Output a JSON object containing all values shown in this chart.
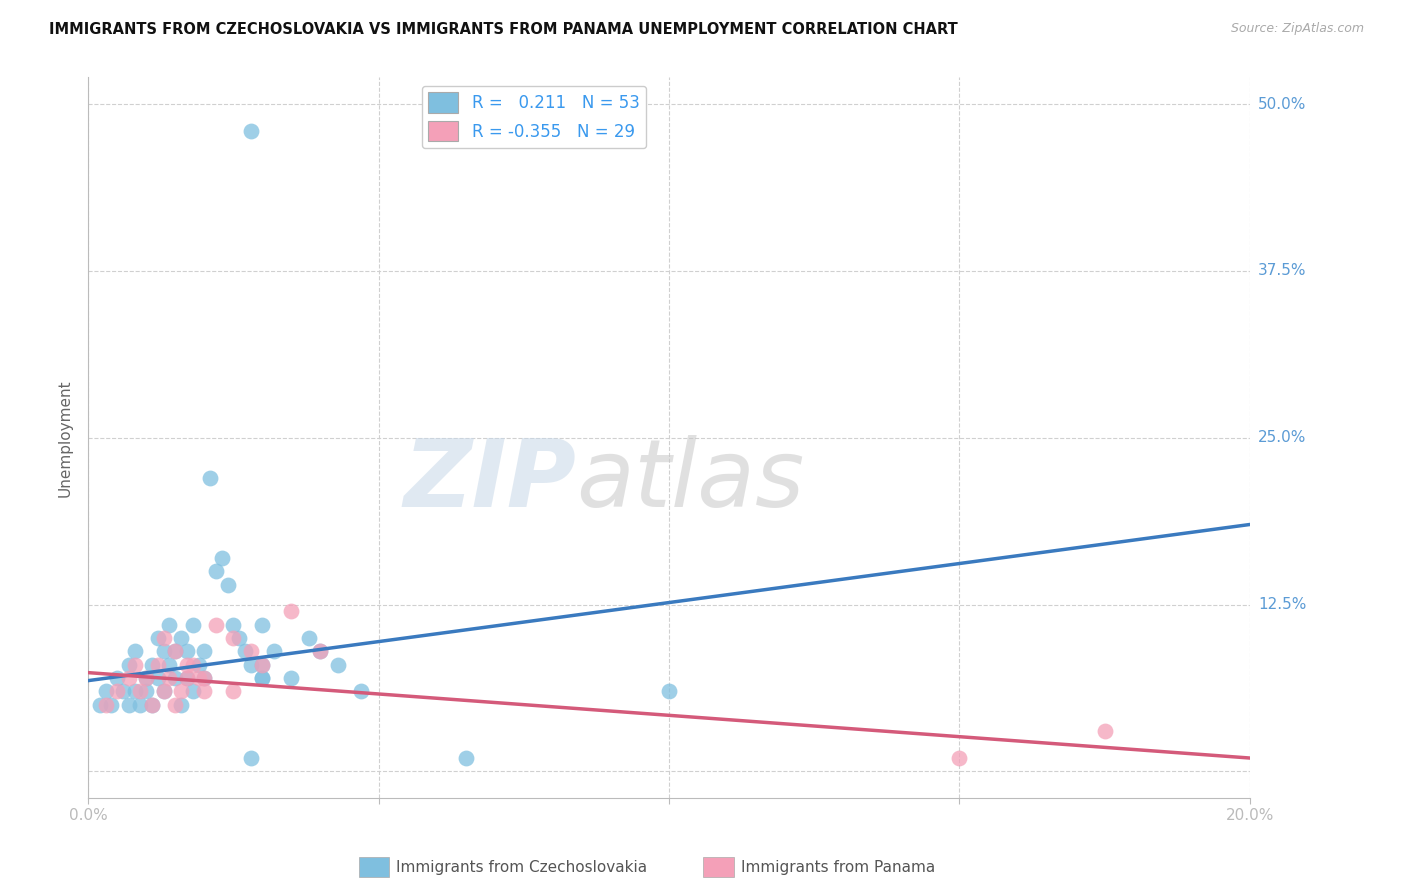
{
  "title": "IMMIGRANTS FROM CZECHOSLOVAKIA VS IMMIGRANTS FROM PANAMA UNEMPLOYMENT CORRELATION CHART",
  "source": "Source: ZipAtlas.com",
  "ylabel": "Unemployment",
  "xlim": [
    0.0,
    0.2
  ],
  "ylim": [
    -0.02,
    0.52
  ],
  "yticks": [
    0.0,
    0.125,
    0.25,
    0.375,
    0.5
  ],
  "background_color": "#ffffff",
  "watermark_zip": "ZIP",
  "watermark_atlas": "atlas",
  "legend_R1": "0.211",
  "legend_N1": "53",
  "legend_R2": "-0.355",
  "legend_N2": "29",
  "color_czech": "#7fbfdf",
  "color_panama": "#f4a0b8",
  "line_color_czech": "#3a7abf",
  "line_color_panama": "#d45a7a",
  "grid_color": "#d0d0d0",
  "czech_x": [
    0.002,
    0.003,
    0.004,
    0.005,
    0.006,
    0.007,
    0.007,
    0.008,
    0.008,
    0.009,
    0.01,
    0.01,
    0.011,
    0.011,
    0.012,
    0.012,
    0.013,
    0.013,
    0.014,
    0.014,
    0.015,
    0.015,
    0.016,
    0.016,
    0.017,
    0.017,
    0.018,
    0.018,
    0.019,
    0.02,
    0.02,
    0.021,
    0.022,
    0.023,
    0.024,
    0.025,
    0.026,
    0.027,
    0.028,
    0.03,
    0.03,
    0.032,
    0.035,
    0.038,
    0.04,
    0.043,
    0.047,
    0.03,
    0.03,
    0.028,
    0.065,
    0.1,
    0.028
  ],
  "czech_y": [
    0.05,
    0.06,
    0.05,
    0.07,
    0.06,
    0.05,
    0.08,
    0.06,
    0.09,
    0.05,
    0.07,
    0.06,
    0.08,
    0.05,
    0.1,
    0.07,
    0.09,
    0.06,
    0.11,
    0.08,
    0.07,
    0.09,
    0.05,
    0.1,
    0.07,
    0.09,
    0.06,
    0.11,
    0.08,
    0.07,
    0.09,
    0.22,
    0.15,
    0.16,
    0.14,
    0.11,
    0.1,
    0.09,
    0.08,
    0.08,
    0.07,
    0.09,
    0.07,
    0.1,
    0.09,
    0.08,
    0.06,
    0.11,
    0.07,
    0.48,
    0.01,
    0.06,
    0.01
  ],
  "panama_x": [
    0.003,
    0.005,
    0.007,
    0.008,
    0.009,
    0.01,
    0.011,
    0.012,
    0.013,
    0.014,
    0.015,
    0.016,
    0.017,
    0.018,
    0.019,
    0.02,
    0.022,
    0.025,
    0.028,
    0.03,
    0.035,
    0.04,
    0.013,
    0.015,
    0.017,
    0.02,
    0.025,
    0.15,
    0.175
  ],
  "panama_y": [
    0.05,
    0.06,
    0.07,
    0.08,
    0.06,
    0.07,
    0.05,
    0.08,
    0.06,
    0.07,
    0.05,
    0.06,
    0.07,
    0.08,
    0.07,
    0.06,
    0.11,
    0.1,
    0.09,
    0.08,
    0.12,
    0.09,
    0.1,
    0.09,
    0.08,
    0.07,
    0.06,
    0.01,
    0.03
  ],
  "czech_line_x0": 0.0,
  "czech_line_y0": 0.068,
  "czech_line_x1": 0.2,
  "czech_line_y1": 0.185,
  "panama_line_x0": 0.0,
  "panama_line_y0": 0.074,
  "panama_line_x1": 0.2,
  "panama_line_y1": 0.01
}
